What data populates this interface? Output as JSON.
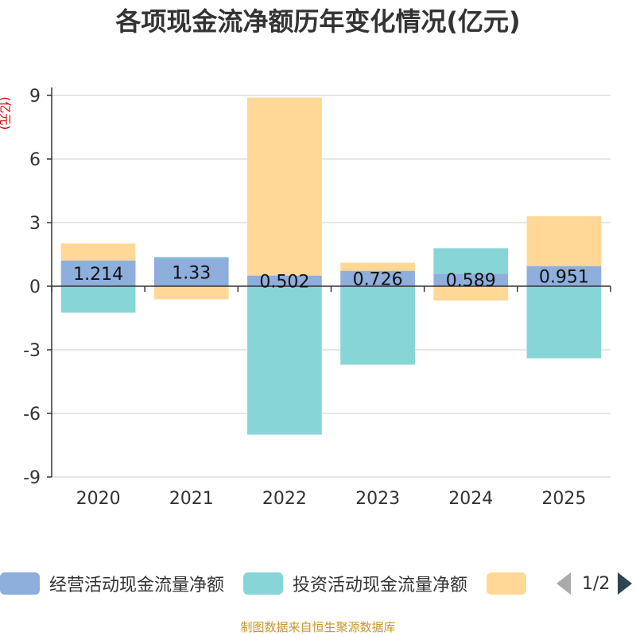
{
  "chart_data": {
    "type": "bar",
    "stacked": true,
    "title": "各项现金流净额历年变化情况(亿元)",
    "ylabel": "(亿元)",
    "xlabel": "",
    "ylim": [
      -9,
      9
    ],
    "yticks": [
      9,
      6,
      3,
      0,
      -3,
      -6,
      -9
    ],
    "categories": [
      "2020",
      "2021",
      "2022",
      "2023",
      "2024",
      "2025"
    ],
    "series": [
      {
        "name": "经营活动现金流量净额",
        "color": "#8eaedc",
        "values": [
          1.214,
          1.33,
          0.502,
          0.726,
          0.589,
          0.951
        ],
        "labels": [
          "1.214",
          "1.33",
          "0.502",
          "0.726",
          "0.589",
          "0.951"
        ]
      },
      {
        "name": "投资活动现金流量净额",
        "color": "#88d5d8",
        "values": [
          -1.25,
          0.05,
          -7.0,
          -3.7,
          1.2,
          -3.4
        ]
      },
      {
        "name": "",
        "color": "#ffd897",
        "values": [
          0.8,
          -0.62,
          8.4,
          0.38,
          -0.68,
          2.35
        ]
      }
    ]
  },
  "legend": {
    "items": [
      "经营活动现金流量净额",
      "投资活动现金流量净额",
      ""
    ],
    "page": "1/2"
  },
  "footer": "制图数据来自恒生聚源数据库"
}
